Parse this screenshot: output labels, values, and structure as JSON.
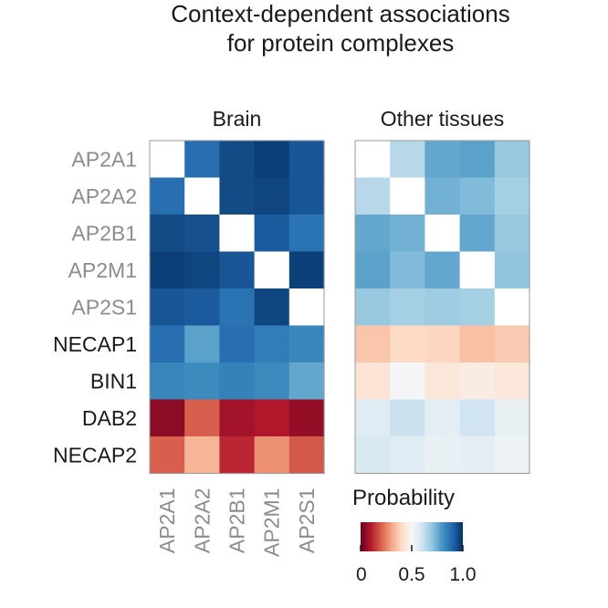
{
  "chart_data": {
    "type": "heatmap",
    "title_lines": [
      "Context-dependent associations",
      "for protein complexes"
    ],
    "rows": [
      {
        "label": "AP2A1",
        "color": "#8c8c8c"
      },
      {
        "label": "AP2A2",
        "color": "#8c8c8c"
      },
      {
        "label": "AP2B1",
        "color": "#8c8c8c"
      },
      {
        "label": "AP2M1",
        "color": "#8c8c8c"
      },
      {
        "label": "AP2S1",
        "color": "#8c8c8c"
      },
      {
        "label": "NECAP1",
        "color": "#1a1a1a"
      },
      {
        "label": "BIN1",
        "color": "#1a1a1a"
      },
      {
        "label": "DAB2",
        "color": "#1a1a1a"
      },
      {
        "label": "NECAP2",
        "color": "#1a1a1a"
      }
    ],
    "columns": [
      "AP2A1",
      "AP2A2",
      "AP2B1",
      "AP2M1",
      "AP2S1"
    ],
    "panels": [
      {
        "title": "Brain",
        "values": [
          [
            null,
            0.88,
            0.95,
            0.97,
            0.93
          ],
          [
            0.88,
            null,
            0.95,
            0.96,
            0.93
          ],
          [
            0.95,
            0.94,
            null,
            0.92,
            0.87
          ],
          [
            0.97,
            0.96,
            0.93,
            null,
            0.97
          ],
          [
            0.93,
            0.92,
            0.87,
            0.96,
            null
          ],
          [
            0.88,
            0.77,
            0.88,
            0.85,
            0.83
          ],
          [
            0.83,
            0.82,
            0.84,
            0.82,
            0.76
          ],
          [
            0.05,
            0.2,
            0.08,
            0.1,
            0.06
          ],
          [
            0.2,
            0.33,
            0.12,
            0.27,
            0.19
          ]
        ]
      },
      {
        "title": "Other tissues",
        "values": [
          [
            null,
            0.64,
            0.76,
            0.77,
            0.69
          ],
          [
            0.64,
            null,
            0.74,
            0.72,
            0.67
          ],
          [
            0.76,
            0.74,
            null,
            0.76,
            0.69
          ],
          [
            0.77,
            0.72,
            0.76,
            null,
            0.7
          ],
          [
            0.69,
            0.67,
            0.68,
            0.67,
            null
          ],
          [
            0.36,
            0.4,
            0.39,
            0.35,
            0.37
          ],
          [
            0.43,
            0.51,
            0.44,
            0.46,
            0.44
          ],
          [
            0.56,
            0.61,
            0.55,
            0.6,
            0.54
          ],
          [
            0.58,
            0.56,
            0.54,
            0.55,
            0.53
          ]
        ]
      }
    ],
    "diagonal_color": "#ffffff",
    "colorbar": {
      "title": "Probability",
      "ticks": [
        {
          "value": 0,
          "label": "0"
        },
        {
          "value": 0.5,
          "label": "0.5"
        },
        {
          "value": 1.0,
          "label": "1.0"
        }
      ],
      "range": [
        0,
        1
      ],
      "colormap": "RdBu",
      "stops": [
        "#67001f",
        "#b2182b",
        "#d6604d",
        "#f4a582",
        "#fddbc7",
        "#f7f7f7",
        "#d1e5f0",
        "#92c5de",
        "#4393c3",
        "#2166ac",
        "#053061"
      ]
    }
  }
}
